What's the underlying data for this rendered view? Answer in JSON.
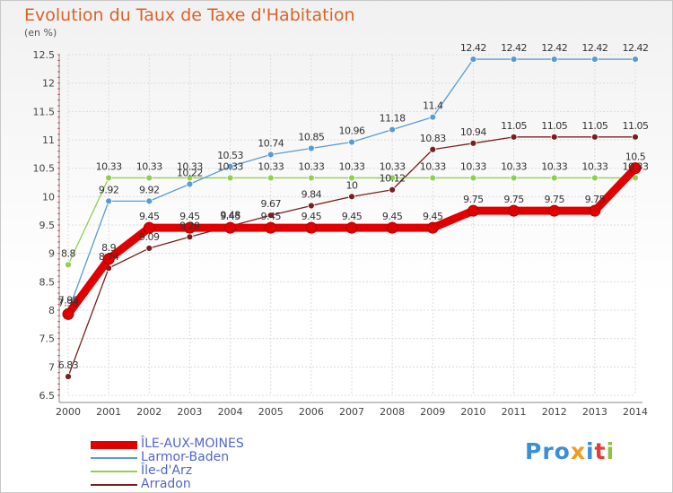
{
  "title": "Evolution du Taux de Taxe d'Habitation",
  "subtitle": "(en %)",
  "brand": {
    "p1": "Pro",
    "p2": "x",
    "p3": "i",
    "p4": "t",
    "p5": "i"
  },
  "colors": {
    "title": "#d9632a",
    "legend_text": "#5066cc"
  },
  "chart_data": {
    "type": "line",
    "x": [
      2000,
      2001,
      2002,
      2003,
      2004,
      2005,
      2006,
      2007,
      2008,
      2009,
      2010,
      2011,
      2012,
      2013,
      2014
    ],
    "ylim": [
      6.5,
      12.5
    ],
    "yticks": [
      6.5,
      7,
      7.5,
      8,
      8.5,
      9,
      9.5,
      10,
      10.5,
      11,
      11.5,
      12,
      12.5
    ],
    "ytick_labels": [
      "6.5",
      "7",
      "7.5",
      "8",
      "8.5",
      "9",
      "9.5",
      "10",
      "10.5",
      "11",
      "11.5",
      "12",
      "12.5"
    ],
    "grid": true,
    "legend_position": "bottom-left",
    "series": [
      {
        "name": "ÎLE-AUX-MOINES",
        "color": "#e00000",
        "values": [
          7.93,
          8.9,
          9.45,
          9.45,
          9.45,
          9.45,
          9.45,
          9.45,
          9.45,
          9.45,
          9.75,
          9.75,
          9.75,
          9.75,
          10.5
        ],
        "labels": [
          "7.93",
          "8.9",
          "9.45",
          "9.45",
          "9.45",
          "9.45",
          "9.45",
          "9.45",
          "9.45",
          "9.45",
          "9.75",
          "9.75",
          "9.75",
          "9.75",
          "10.5"
        ]
      },
      {
        "name": "Larmor-Baden",
        "color": "#5b9bd5",
        "values": [
          7.98,
          9.92,
          9.92,
          10.22,
          10.53,
          10.74,
          10.85,
          10.96,
          11.18,
          11.4,
          12.42,
          12.42,
          12.42,
          12.42,
          12.42
        ],
        "labels": [
          "7.98",
          "9.92",
          "9.92",
          "10.22",
          "10.53",
          "10.74",
          "10.85",
          "10.96",
          "11.18",
          "11.4",
          "12.42",
          "12.42",
          "12.42",
          "12.42",
          "12.42"
        ]
      },
      {
        "name": "Île-d'Arz",
        "color": "#8fd14f",
        "values": [
          8.8,
          10.33,
          10.33,
          10.33,
          10.33,
          10.33,
          10.33,
          10.33,
          10.33,
          10.33,
          10.33,
          10.33,
          10.33,
          10.33,
          10.33
        ],
        "labels": [
          "8.8",
          "10.33",
          "10.33",
          "10.33",
          "10.33",
          "10.33",
          "10.33",
          "10.33",
          "10.33",
          "10.33",
          "10.33",
          "10.33",
          "10.33",
          "10.33",
          "10.33"
        ]
      },
      {
        "name": "Arradon",
        "color": "#7a1f1f",
        "values": [
          6.83,
          8.74,
          9.09,
          9.29,
          9.48,
          9.67,
          9.84,
          10.0,
          10.12,
          10.83,
          10.94,
          11.05,
          11.05,
          11.05,
          11.05
        ],
        "labels": [
          "6.83",
          "8.74",
          "9.09",
          "9.29",
          "9.48",
          "9.67",
          "9.84",
          "10",
          "10.12",
          "10.83",
          "10.94",
          "11.05",
          "11.05",
          "11.05",
          "11.05"
        ]
      }
    ]
  }
}
